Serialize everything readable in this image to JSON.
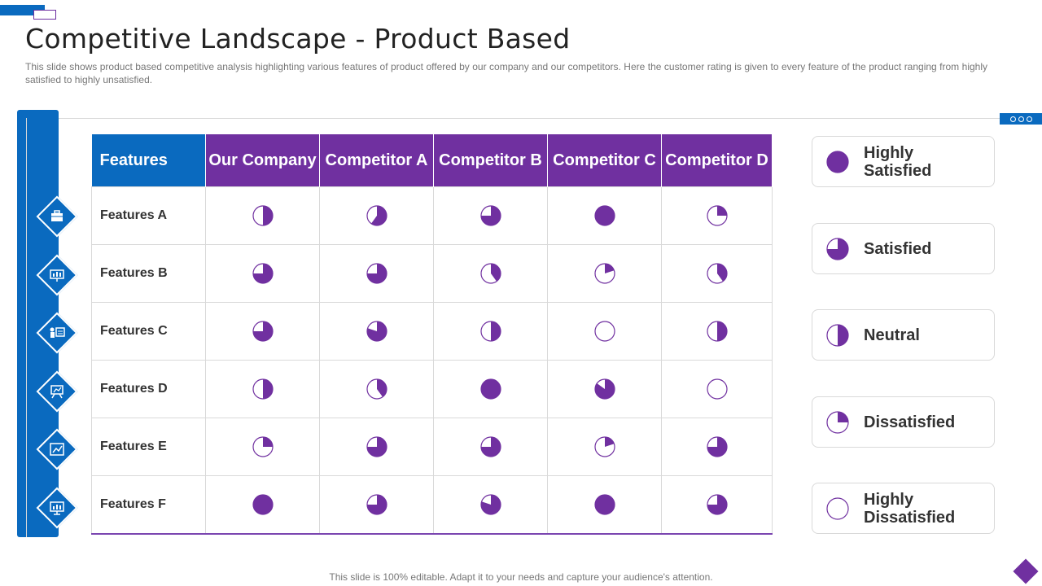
{
  "page": {
    "title": "Competitive Landscape - Product Based",
    "subtitle": "This slide shows product based competitive analysis highlighting various features of product offered by our company and our competitors. Here the customer rating is given to every feature of the product ranging from highly satisfied to highly unsatisfied.",
    "footer": "This slide is 100% editable. Adapt it to your needs and capture your audience's attention."
  },
  "colors": {
    "blue": "#0a6abf",
    "purple": "#7030a0"
  },
  "table": {
    "headers": [
      "Features",
      "Our Company",
      "Competitor A",
      "Competitor B",
      "Competitor C",
      "Competitor D"
    ],
    "rows": [
      {
        "label": "Features A",
        "icon": "briefcase-icon",
        "ratings": [
          0.5,
          0.6,
          0.75,
          1,
          0.25
        ]
      },
      {
        "label": "Features B",
        "icon": "presentation-screen-icon",
        "ratings": [
          0.75,
          0.75,
          0.4,
          0.2,
          0.4
        ]
      },
      {
        "label": "Features C",
        "icon": "presenter-board-icon",
        "ratings": [
          0.75,
          0.8,
          0.5,
          0,
          0.5
        ]
      },
      {
        "label": "Features D",
        "icon": "easel-chart-icon",
        "ratings": [
          0.5,
          0.4,
          1,
          0.85,
          0
        ]
      },
      {
        "label": "Features E",
        "icon": "growth-chart-icon",
        "ratings": [
          0.25,
          0.75,
          0.75,
          0.2,
          0.75
        ]
      },
      {
        "label": "Features F",
        "icon": "monitor-chart-icon",
        "ratings": [
          1,
          0.75,
          0.8,
          1,
          0.75
        ]
      }
    ]
  },
  "legend": [
    {
      "label": "Highly\nSatisfied",
      "fill": 1
    },
    {
      "label": "Satisfied",
      "fill": 0.75
    },
    {
      "label": "Neutral",
      "fill": 0.5
    },
    {
      "label": "Dissatisfied",
      "fill": 0.25
    },
    {
      "label": "Highly\nDissatisfied",
      "fill": 0
    }
  ]
}
